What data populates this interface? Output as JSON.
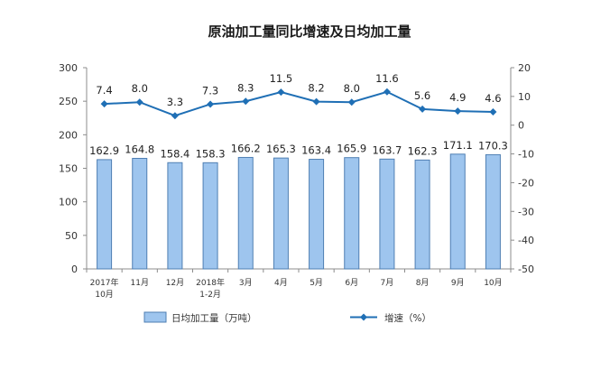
{
  "chart_data": {
    "type": "bar",
    "title": "原油加工量同比增速及日均加工量",
    "categories": [
      [
        "2017年",
        "10月"
      ],
      [
        "11月"
      ],
      [
        "12月"
      ],
      [
        "2018年",
        "1-2月"
      ],
      [
        "3月"
      ],
      [
        "4月"
      ],
      [
        "5月"
      ],
      [
        "6月"
      ],
      [
        "7月"
      ],
      [
        "8月"
      ],
      [
        "9月"
      ],
      [
        "10月"
      ]
    ],
    "series": [
      {
        "name": "日均加工量（万吨）",
        "type": "bar",
        "axis": "left",
        "values": [
          162.9,
          164.8,
          158.4,
          158.3,
          166.2,
          165.3,
          163.4,
          165.9,
          163.7,
          162.3,
          171.1,
          170.3
        ],
        "labels": [
          "162.9",
          "164.8",
          "158.4",
          "158.3",
          "166.2",
          "165.3",
          "163.4",
          "165.9",
          "163.7",
          "162.3",
          "171.1",
          "170.3"
        ]
      },
      {
        "name": "增速（%）",
        "type": "line",
        "axis": "right",
        "values": [
          7.4,
          8.0,
          3.3,
          7.3,
          8.3,
          11.5,
          8.2,
          8.0,
          11.6,
          5.6,
          4.9,
          4.6
        ],
        "labels": [
          "7.4",
          "8.0",
          "3.3",
          "7.3",
          "8.3",
          "11.5",
          "8.2",
          "8.0",
          "11.6",
          "5.6",
          "4.9",
          "4.6"
        ]
      }
    ],
    "y_left": {
      "min": 0,
      "max": 300,
      "ticks": [
        "0",
        "50",
        "100",
        "150",
        "200",
        "250",
        "300"
      ]
    },
    "y_right": {
      "min": -50,
      "max": 20,
      "ticks": [
        "-50",
        "-40",
        "-30",
        "-20",
        "-10",
        "0",
        "10",
        "20"
      ]
    },
    "grid": false,
    "legend_position": "bottom",
    "colors": {
      "bar_fill": "#9ec5ee",
      "bar_stroke": "#4f7fb3",
      "line": "#1f6fb5",
      "axis": "#8c8c8c"
    }
  }
}
